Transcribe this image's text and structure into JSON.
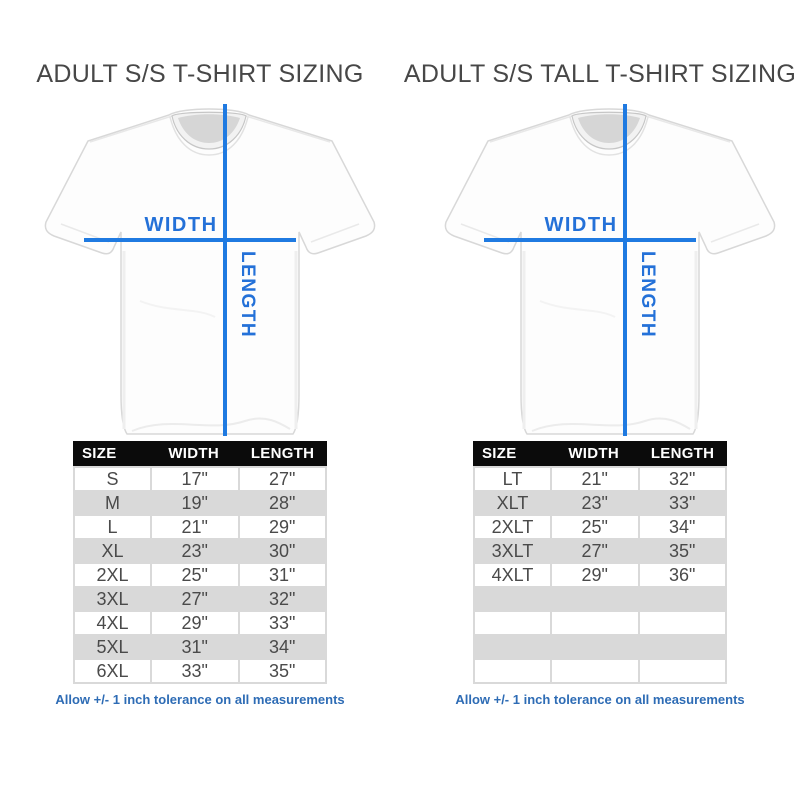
{
  "colors": {
    "accent_blue": "#1f7ae1",
    "label_blue": "#2471d8",
    "footnote_blue": "#2e6cb5",
    "header_bg": "#0b0b0b",
    "row_alt": "#d9d9d9",
    "title_text": "#474747",
    "cell_text": "#4a4a4a"
  },
  "panels": [
    {
      "title": "ADULT S/S T-SHIRT SIZING",
      "diagram": {
        "width_label": "WIDTH",
        "length_label": "LENGTH"
      },
      "table": {
        "headers": [
          "SIZE",
          "WIDTH",
          "LENGTH"
        ],
        "rows": [
          [
            "S",
            "17\"",
            "27\""
          ],
          [
            "M",
            "19\"",
            "28\""
          ],
          [
            "L",
            "21\"",
            "29\""
          ],
          [
            "XL",
            "23\"",
            "30\""
          ],
          [
            "2XL",
            "25\"",
            "31\""
          ],
          [
            "3XL",
            "27\"",
            "32\""
          ],
          [
            "4XL",
            "29\"",
            "33\""
          ],
          [
            "5XL",
            "31\"",
            "34\""
          ],
          [
            "6XL",
            "33\"",
            "35\""
          ]
        ],
        "empty_rows": 0
      },
      "footnote": "Allow +/- 1 inch tolerance on all measurements"
    },
    {
      "title": "ADULT S/S TALL T-SHIRT SIZING",
      "diagram": {
        "width_label": "WIDTH",
        "length_label": "LENGTH"
      },
      "table": {
        "headers": [
          "SIZE",
          "WIDTH",
          "LENGTH"
        ],
        "rows": [
          [
            "LT",
            "21\"",
            "32\""
          ],
          [
            "XLT",
            "23\"",
            "33\""
          ],
          [
            "2XLT",
            "25\"",
            "34\""
          ],
          [
            "3XLT",
            "27\"",
            "35\""
          ],
          [
            "4XLT",
            "29\"",
            "36\""
          ]
        ],
        "empty_rows": 4
      },
      "footnote": "Allow +/- 1 inch tolerance on all measurements"
    }
  ]
}
